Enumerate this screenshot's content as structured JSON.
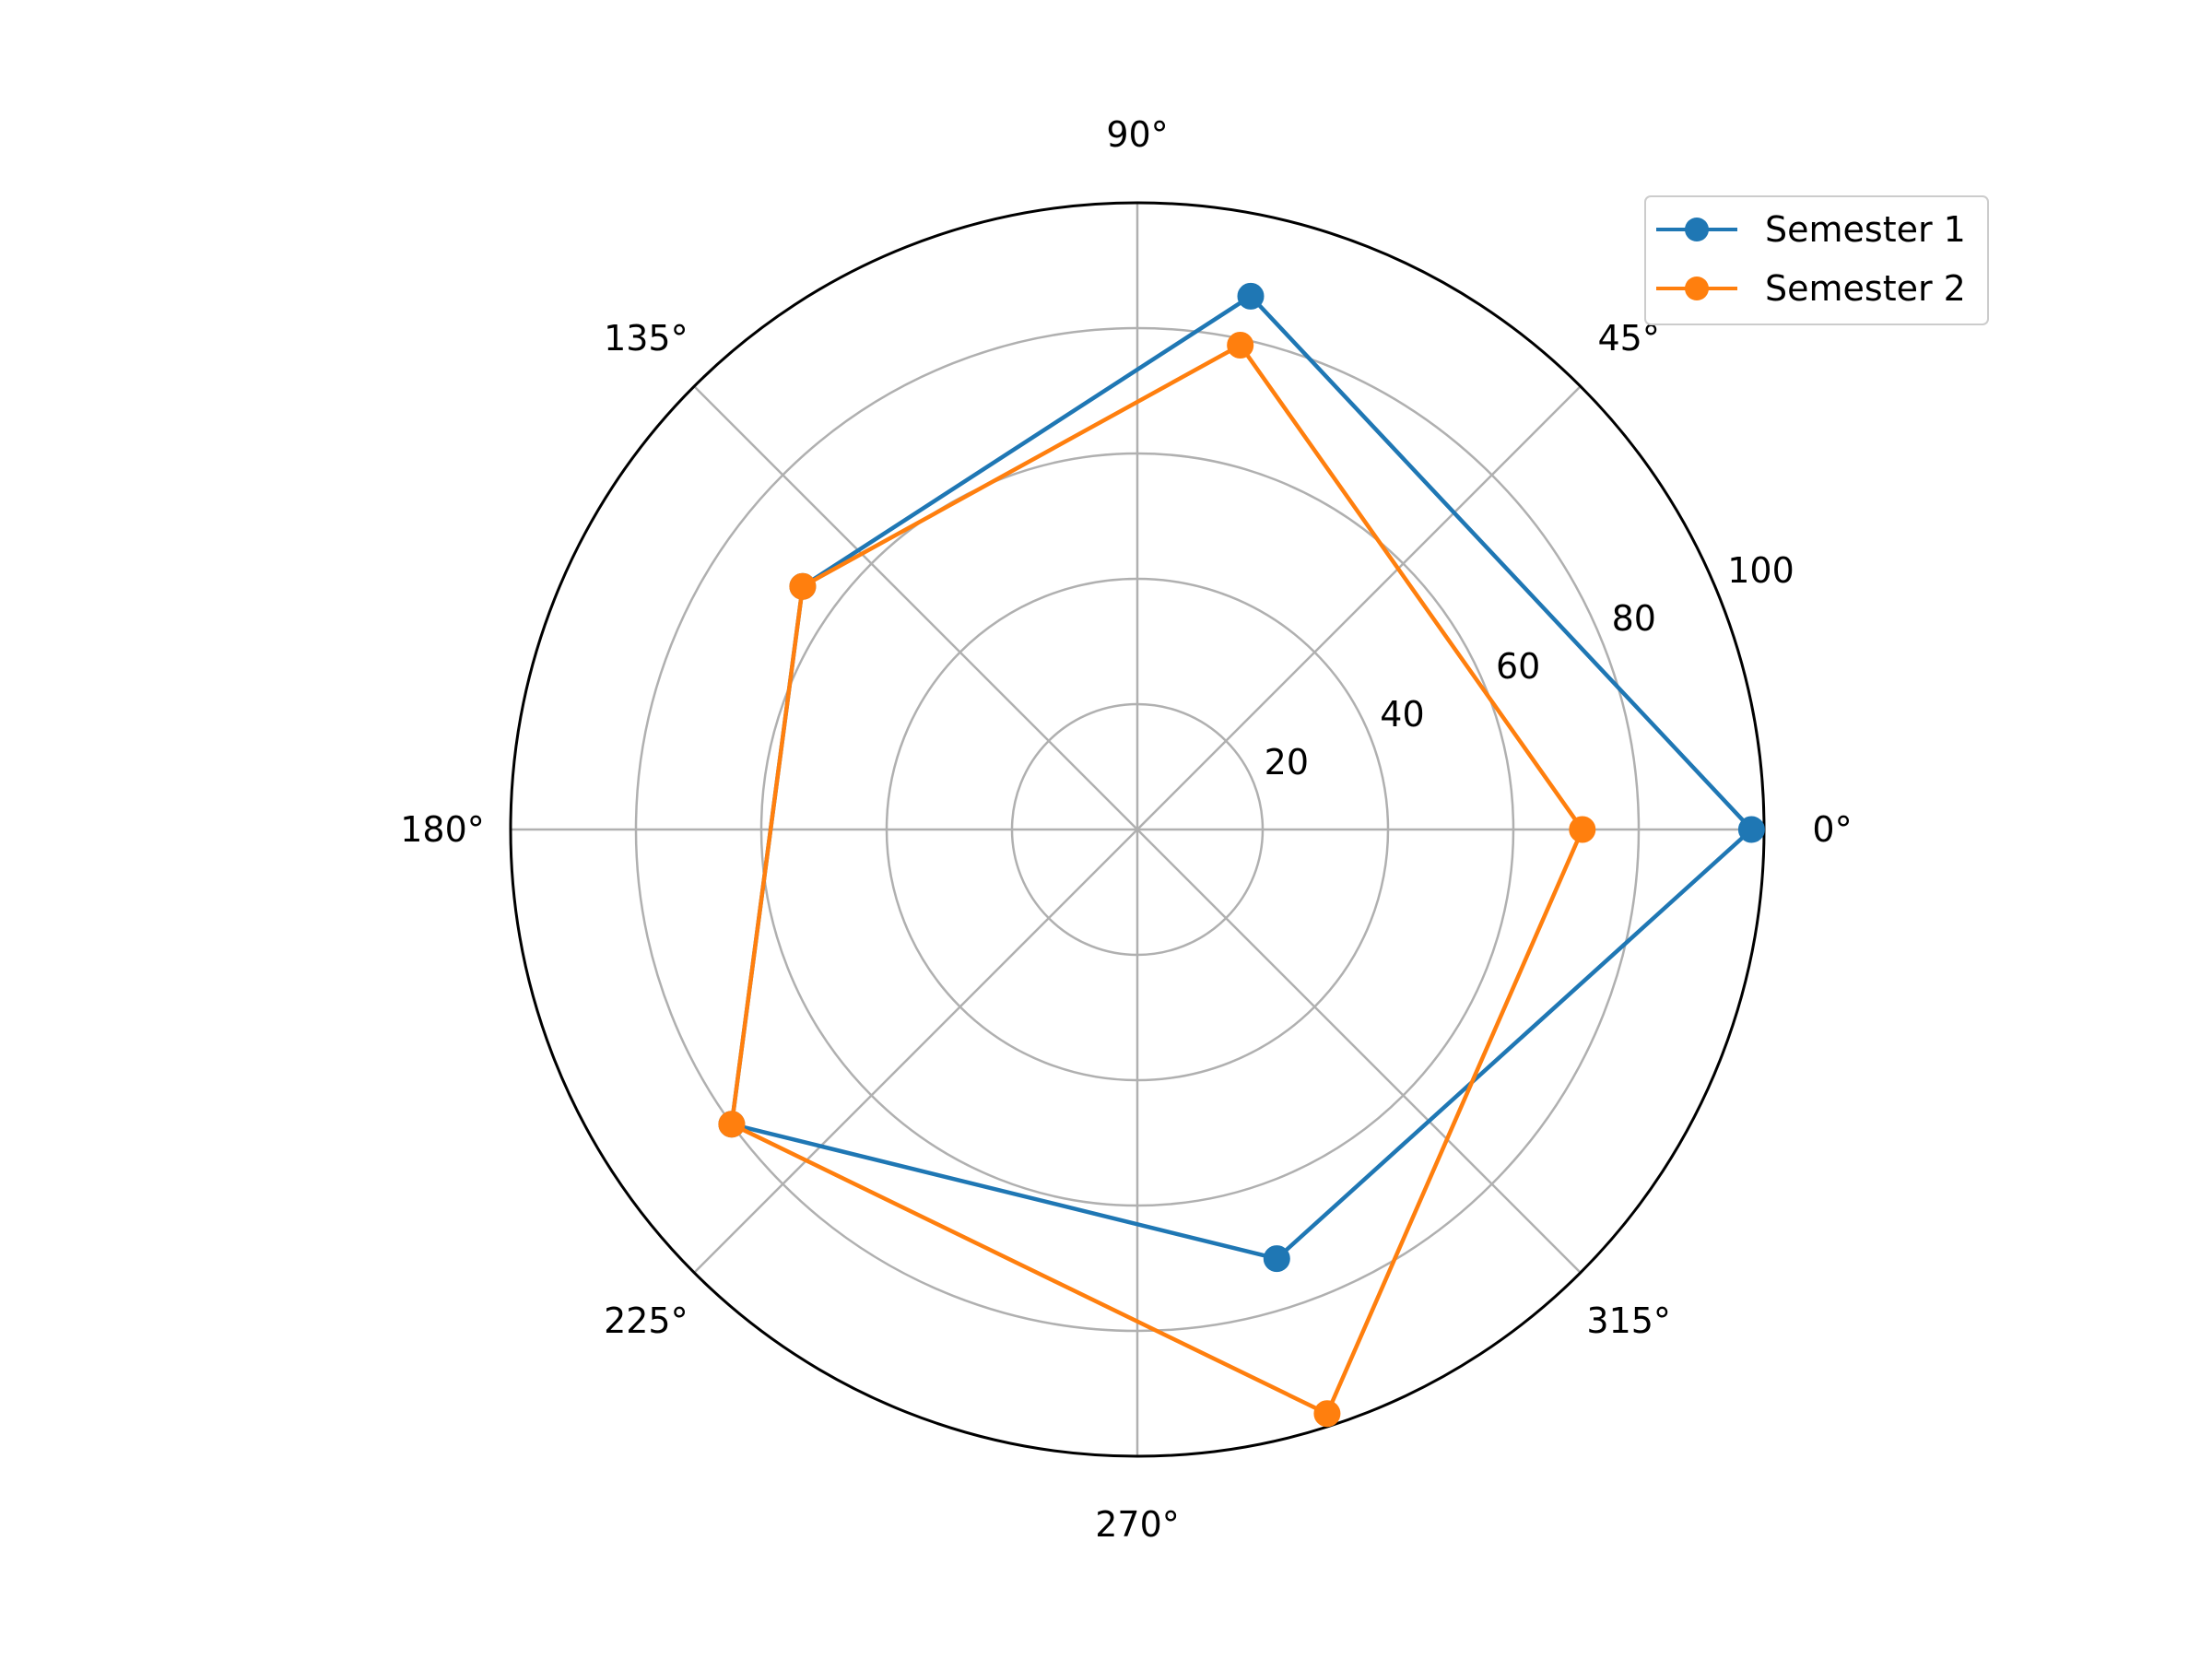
{
  "chart_data": {
    "type": "line",
    "subtype": "polar",
    "title": "",
    "angle_unit": "degrees",
    "angular_ticks": [
      "0°",
      "45°",
      "90°",
      "135°",
      "180°",
      "225°",
      "270°",
      "315°"
    ],
    "radial_ticks": [
      "20",
      "40",
      "60",
      "80",
      "100"
    ],
    "radial_tick_values": [
      20,
      40,
      60,
      80,
      100
    ],
    "rlim": [
      0,
      100
    ],
    "grid": true,
    "legend_position": "top-right",
    "series": [
      {
        "name": "Semester 1",
        "color": "#1f77b4",
        "marker": "circle",
        "points": [
          {
            "theta": 0,
            "r": 98
          },
          {
            "theta": 78,
            "r": 87
          },
          {
            "theta": 144,
            "r": 66
          },
          {
            "theta": 216,
            "r": 80
          },
          {
            "theta": 288,
            "r": 72
          }
        ]
      },
      {
        "name": "Semester 2",
        "color": "#ff7f0e",
        "marker": "circle",
        "points": [
          {
            "theta": 0,
            "r": 71
          },
          {
            "theta": 78,
            "r": 79
          },
          {
            "theta": 144,
            "r": 66
          },
          {
            "theta": 216,
            "r": 80
          },
          {
            "theta": 288,
            "r": 98
          }
        ]
      }
    ]
  }
}
